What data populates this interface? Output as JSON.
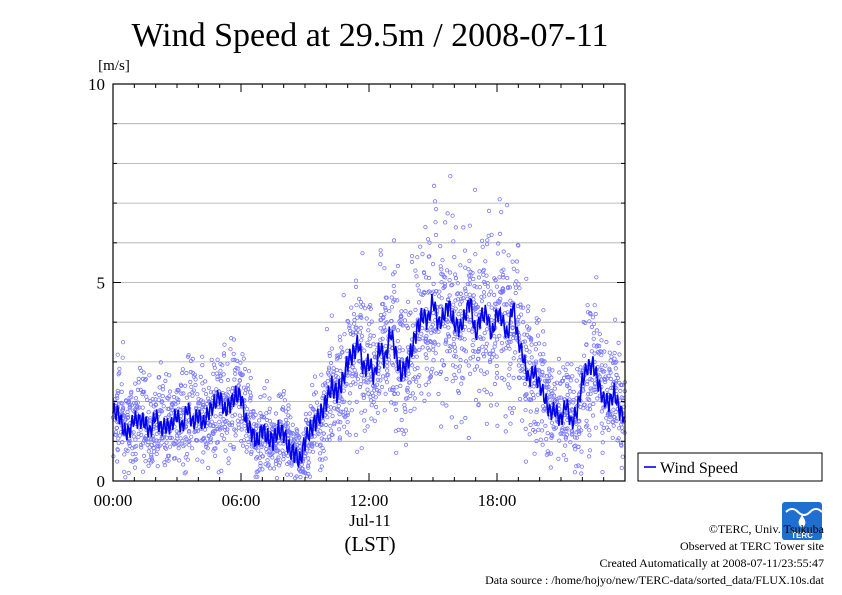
{
  "chart_data": {
    "type": "scatter",
    "title": "Wind Speed at 29.5m / 2008-07-11",
    "ylabel": "[m/s]",
    "xlabel": "(LST)",
    "date_label": "Jul-11",
    "ylim": [
      0,
      10
    ],
    "y_ticks": [
      {
        "value": 0,
        "label": "0"
      },
      {
        "value": 5,
        "label": "5"
      },
      {
        "value": 10,
        "label": "10"
      }
    ],
    "y_gridlines": [
      1,
      2,
      3,
      4,
      5,
      6,
      7,
      8,
      9
    ],
    "x_unit": "hours",
    "xlim": [
      0,
      24
    ],
    "x_ticks": [
      {
        "value": 0,
        "label": "00:00"
      },
      {
        "value": 6,
        "label": "06:00"
      },
      {
        "value": 12,
        "label": "12:00"
      },
      {
        "value": 18,
        "label": "18:00"
      }
    ],
    "legend": {
      "label": "Wind Speed",
      "position": "right"
    },
    "colors": {
      "line": "#0000ee",
      "points": "#7777ff"
    },
    "series": [
      {
        "name": "Wind Speed",
        "x": [
          0.0,
          0.25,
          0.5,
          0.75,
          1.0,
          1.25,
          1.5,
          1.75,
          2.0,
          2.25,
          2.5,
          2.75,
          3.0,
          3.25,
          3.5,
          3.75,
          4.0,
          4.25,
          4.5,
          4.75,
          5.0,
          5.25,
          5.5,
          5.75,
          6.0,
          6.25,
          6.5,
          6.75,
          7.0,
          7.25,
          7.5,
          7.75,
          8.0,
          8.25,
          8.5,
          8.75,
          9.0,
          9.25,
          9.5,
          9.75,
          10.0,
          10.25,
          10.5,
          10.75,
          11.0,
          11.25,
          11.5,
          11.75,
          12.0,
          12.25,
          12.5,
          12.75,
          13.0,
          13.25,
          13.5,
          13.75,
          14.0,
          14.25,
          14.5,
          14.75,
          15.0,
          15.25,
          15.5,
          15.75,
          16.0,
          16.25,
          16.5,
          16.75,
          17.0,
          17.25,
          17.5,
          17.75,
          18.0,
          18.25,
          18.5,
          18.75,
          19.0,
          19.25,
          19.5,
          19.75,
          20.0,
          20.25,
          20.5,
          20.75,
          21.0,
          21.25,
          21.5,
          21.75,
          22.0,
          22.25,
          22.5,
          22.75,
          23.0,
          23.25,
          23.5,
          23.75
        ],
        "y": [
          1.7,
          1.8,
          1.2,
          1.3,
          1.5,
          1.6,
          1.4,
          1.3,
          1.6,
          1.4,
          1.3,
          1.5,
          1.6,
          1.4,
          1.8,
          1.5,
          1.6,
          1.5,
          1.7,
          2.0,
          2.1,
          1.8,
          1.9,
          2.2,
          2.1,
          1.5,
          1.2,
          1.0,
          1.3,
          1.1,
          1.0,
          1.3,
          1.2,
          0.8,
          0.7,
          0.5,
          1.0,
          1.3,
          1.5,
          1.7,
          2.0,
          2.4,
          2.2,
          2.5,
          3.0,
          3.2,
          3.5,
          2.8,
          3.0,
          2.6,
          3.4,
          3.0,
          3.8,
          3.2,
          2.7,
          2.9,
          3.3,
          3.8,
          4.2,
          4.0,
          4.6,
          3.9,
          4.2,
          4.4,
          4.0,
          3.8,
          4.2,
          4.5,
          3.7,
          4.1,
          4.3,
          3.6,
          4.3,
          4.0,
          3.7,
          4.4,
          3.6,
          3.0,
          2.6,
          2.7,
          2.5,
          2.0,
          1.8,
          1.7,
          1.6,
          1.9,
          1.5,
          1.7,
          2.6,
          2.8,
          3.0,
          2.4,
          2.1,
          1.9,
          2.3,
          1.7
        ]
      }
    ]
  },
  "footer": {
    "copyright": "©TERC, Univ. Tsukuba",
    "observed": "Observed at TERC Tower site",
    "created": "Created Automatically at 2008-07-11/23:55:47",
    "source": "Data source : /home/hojyo/new/TERC-data/sorted_data/FLUX.10s.dat"
  },
  "logo": {
    "text": "TERC",
    "color": "#1e6fd0"
  }
}
